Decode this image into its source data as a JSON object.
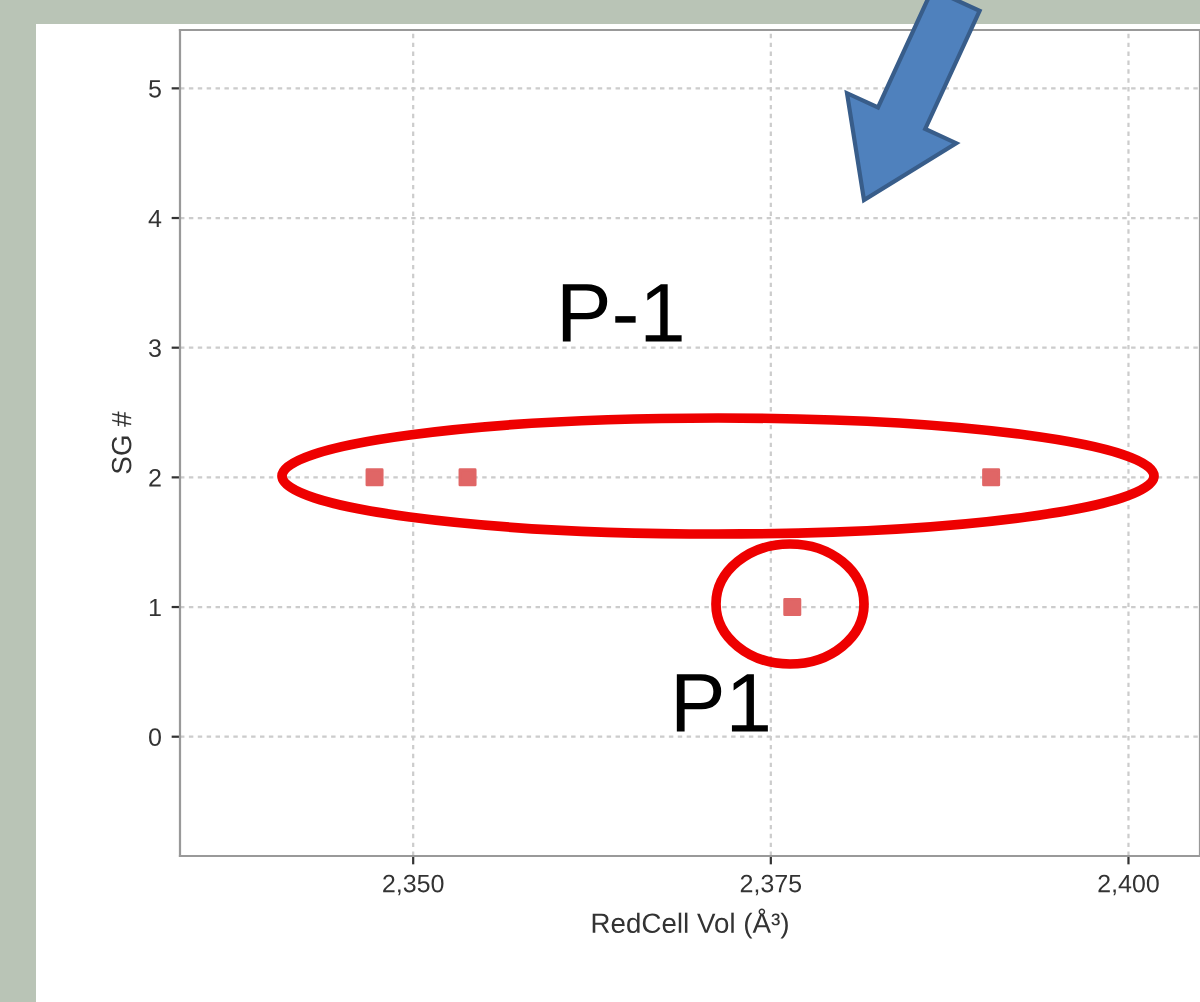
{
  "chart_data": {
    "type": "scatter",
    "xlabel": "RedCell Vol (Å³)",
    "ylabel": "SG #",
    "x": [
      2347.3,
      2353.8,
      2390.4,
      2376.5
    ],
    "series": [
      {
        "color": "#e06666",
        "values": [
          2,
          2,
          2,
          1
        ]
      }
    ],
    "xlim": [
      2333.7,
      2405
    ],
    "ylim": [
      -0.92,
      5.45
    ],
    "xticks": [
      {
        "value": 2350,
        "label": "2,350"
      },
      {
        "value": 2375,
        "label": "2,375"
      },
      {
        "value": 2400,
        "label": "2,400"
      }
    ],
    "yticks": [
      0,
      1,
      2,
      3,
      4,
      5
    ],
    "grid": true,
    "marker": "square",
    "legend": false,
    "annotations": [
      "P-1",
      "P1"
    ]
  }
}
